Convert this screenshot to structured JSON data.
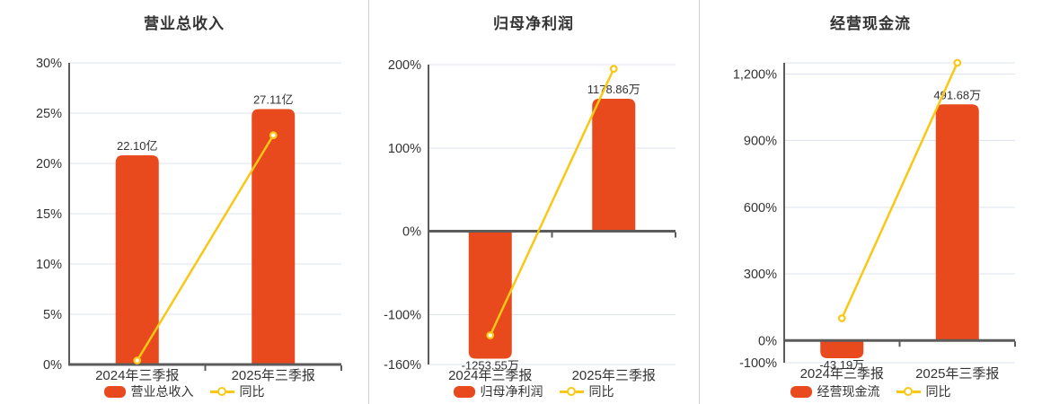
{
  "colors": {
    "bar": "#E8491D",
    "line": "#F9C716",
    "grid": "#DEE3EE",
    "axis": "#5B5B5B",
    "text": "#333333",
    "divider": "#CFCFCF",
    "marker_fill": "#FFFFFF"
  },
  "chart_data": [
    {
      "type": "bar",
      "title": "营业总收入",
      "categories": [
        "2024年三季报",
        "2025年三季报"
      ],
      "bar_series": {
        "name": "营业总收入",
        "value_labels": [
          "22.10亿",
          "27.11亿"
        ],
        "axis_pct": [
          20.8,
          25.4
        ]
      },
      "line_series": {
        "name": "同比",
        "pct": [
          0.4,
          22.8
        ]
      },
      "y_axis": {
        "min": 0,
        "max": 30,
        "tick_values": [
          30,
          25,
          20,
          15,
          10,
          5,
          0
        ],
        "tick_labels": [
          "30%",
          "25%",
          "20%",
          "15%",
          "10%",
          "5%",
          "0%"
        ]
      },
      "grid": true,
      "legend_position": "bottom"
    },
    {
      "type": "bar",
      "title": "归母净利润",
      "categories": [
        "2024年三季报",
        "2025年三季报"
      ],
      "bar_series": {
        "name": "归母净利润",
        "value_labels": [
          "-1253.55万",
          "1178.86万"
        ],
        "axis_pct": [
          -153,
          159
        ]
      },
      "line_series": {
        "name": "同比",
        "pct": [
          -125,
          195
        ]
      },
      "y_axis": {
        "min": -160,
        "max": 200,
        "tick_values": [
          200,
          100,
          0,
          -100,
          -160
        ],
        "tick_labels": [
          "200%",
          "100%",
          "0%",
          "-100%",
          "-160%"
        ]
      },
      "grid": true,
      "legend_position": "bottom"
    },
    {
      "type": "bar",
      "title": "经营现金流",
      "categories": [
        "2024年三季报",
        "2025年三季报"
      ],
      "bar_series": {
        "name": "经营现金流",
        "value_labels": [
          "-43.19万",
          "491.68万"
        ],
        "axis_pct": [
          -80,
          1063
        ]
      },
      "line_series": {
        "name": "同比",
        "pct": [
          100,
          1250
        ]
      },
      "y_axis": {
        "min": -100,
        "max": 1250,
        "tick_values": [
          1200,
          900,
          600,
          300,
          0,
          -100
        ],
        "tick_labels": [
          "1,200%",
          "900%",
          "600%",
          "300%",
          "0%",
          "-100%"
        ]
      },
      "grid": true,
      "legend_position": "bottom"
    }
  ]
}
